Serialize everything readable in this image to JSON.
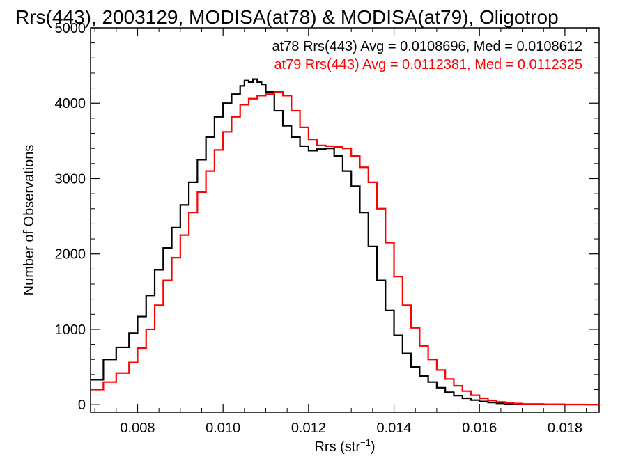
{
  "chart_data": {
    "type": "line",
    "title": "Rrs(443), 2003129, MODISA(at78) & MODISA(at79), Oligotrop",
    "xlabel_main": "Rrs (str",
    "xlabel_sup": "−1",
    "xlabel_close": ")",
    "ylabel": "Number of Observations",
    "xlim": [
      0.0069,
      0.0188
    ],
    "ylim": [
      -100,
      5000
    ],
    "x_ticks": [
      {
        "value": 0.008,
        "label": "0.008"
      },
      {
        "value": 0.01,
        "label": "0.010"
      },
      {
        "value": 0.012,
        "label": "0.012"
      },
      {
        "value": 0.014,
        "label": "0.014"
      },
      {
        "value": 0.016,
        "label": "0.016"
      },
      {
        "value": 0.018,
        "label": "0.018"
      }
    ],
    "y_ticks": [
      {
        "value": 0,
        "label": "0"
      },
      {
        "value": 1000,
        "label": "1000"
      },
      {
        "value": 2000,
        "label": "2000"
      },
      {
        "value": 3000,
        "label": "3000"
      },
      {
        "value": 4000,
        "label": "4000"
      },
      {
        "value": 5000,
        "label": "5000"
      }
    ],
    "grid": false,
    "step": true,
    "series": [
      {
        "name": "at78",
        "color": "#000000",
        "annotation": "at78 Rrs(443) Avg = 0.0108696, Med = 0.0108612",
        "x": [
          0.0069,
          0.0072,
          0.0075,
          0.0078,
          0.008,
          0.0082,
          0.0084,
          0.0086,
          0.0088,
          0.009,
          0.0092,
          0.0094,
          0.0096,
          0.0098,
          0.01,
          0.0102,
          0.0104,
          0.0105,
          0.0106,
          0.0107,
          0.0108,
          0.0109,
          0.011,
          0.0112,
          0.0114,
          0.0116,
          0.0118,
          0.012,
          0.0122,
          0.0124,
          0.0126,
          0.0128,
          0.013,
          0.0132,
          0.0134,
          0.0136,
          0.0138,
          0.014,
          0.0142,
          0.0144,
          0.0146,
          0.0148,
          0.015,
          0.0152,
          0.0154,
          0.0156,
          0.0158,
          0.016,
          0.0162,
          0.0164,
          0.0166,
          0.0168,
          0.017,
          0.0175,
          0.018,
          0.0185,
          0.0188
        ],
        "y": [
          330,
          600,
          760,
          950,
          1170,
          1450,
          1790,
          2080,
          2350,
          2650,
          2950,
          3250,
          3550,
          3820,
          4000,
          4120,
          4230,
          4300,
          4280,
          4320,
          4280,
          4250,
          4150,
          3900,
          3700,
          3550,
          3430,
          3370,
          3390,
          3400,
          3300,
          3100,
          2900,
          2550,
          2100,
          1650,
          1250,
          920,
          680,
          500,
          380,
          300,
          225,
          165,
          120,
          85,
          60,
          42,
          28,
          18,
          12,
          8,
          5,
          3,
          1,
          0,
          0
        ]
      },
      {
        "name": "at79",
        "color": "#ff0000",
        "annotation": "at79 Rrs(443) Avg = 0.0112381, Med = 0.0112325",
        "x": [
          0.0069,
          0.0072,
          0.0075,
          0.0078,
          0.008,
          0.0082,
          0.0084,
          0.0086,
          0.0088,
          0.009,
          0.0092,
          0.0094,
          0.0096,
          0.0098,
          0.01,
          0.0102,
          0.0104,
          0.0106,
          0.0108,
          0.011,
          0.0112,
          0.0114,
          0.0116,
          0.0118,
          0.012,
          0.0122,
          0.0124,
          0.0126,
          0.0128,
          0.013,
          0.0132,
          0.0134,
          0.0136,
          0.0138,
          0.014,
          0.0142,
          0.0144,
          0.0146,
          0.0148,
          0.015,
          0.0152,
          0.0154,
          0.0156,
          0.0158,
          0.016,
          0.0162,
          0.0164,
          0.0166,
          0.0168,
          0.017,
          0.0175,
          0.018,
          0.0185,
          0.0188
        ],
        "y": [
          200,
          300,
          420,
          560,
          750,
          1000,
          1320,
          1650,
          1950,
          2250,
          2550,
          2820,
          3100,
          3380,
          3620,
          3820,
          3980,
          4060,
          4100,
          4120,
          4150,
          4100,
          3900,
          3680,
          3520,
          3440,
          3430,
          3420,
          3400,
          3300,
          3150,
          2950,
          2600,
          2150,
          1700,
          1320,
          1020,
          780,
          600,
          460,
          340,
          250,
          180,
          125,
          85,
          55,
          35,
          22,
          14,
          9,
          4,
          2,
          1,
          0
        ]
      }
    ]
  }
}
